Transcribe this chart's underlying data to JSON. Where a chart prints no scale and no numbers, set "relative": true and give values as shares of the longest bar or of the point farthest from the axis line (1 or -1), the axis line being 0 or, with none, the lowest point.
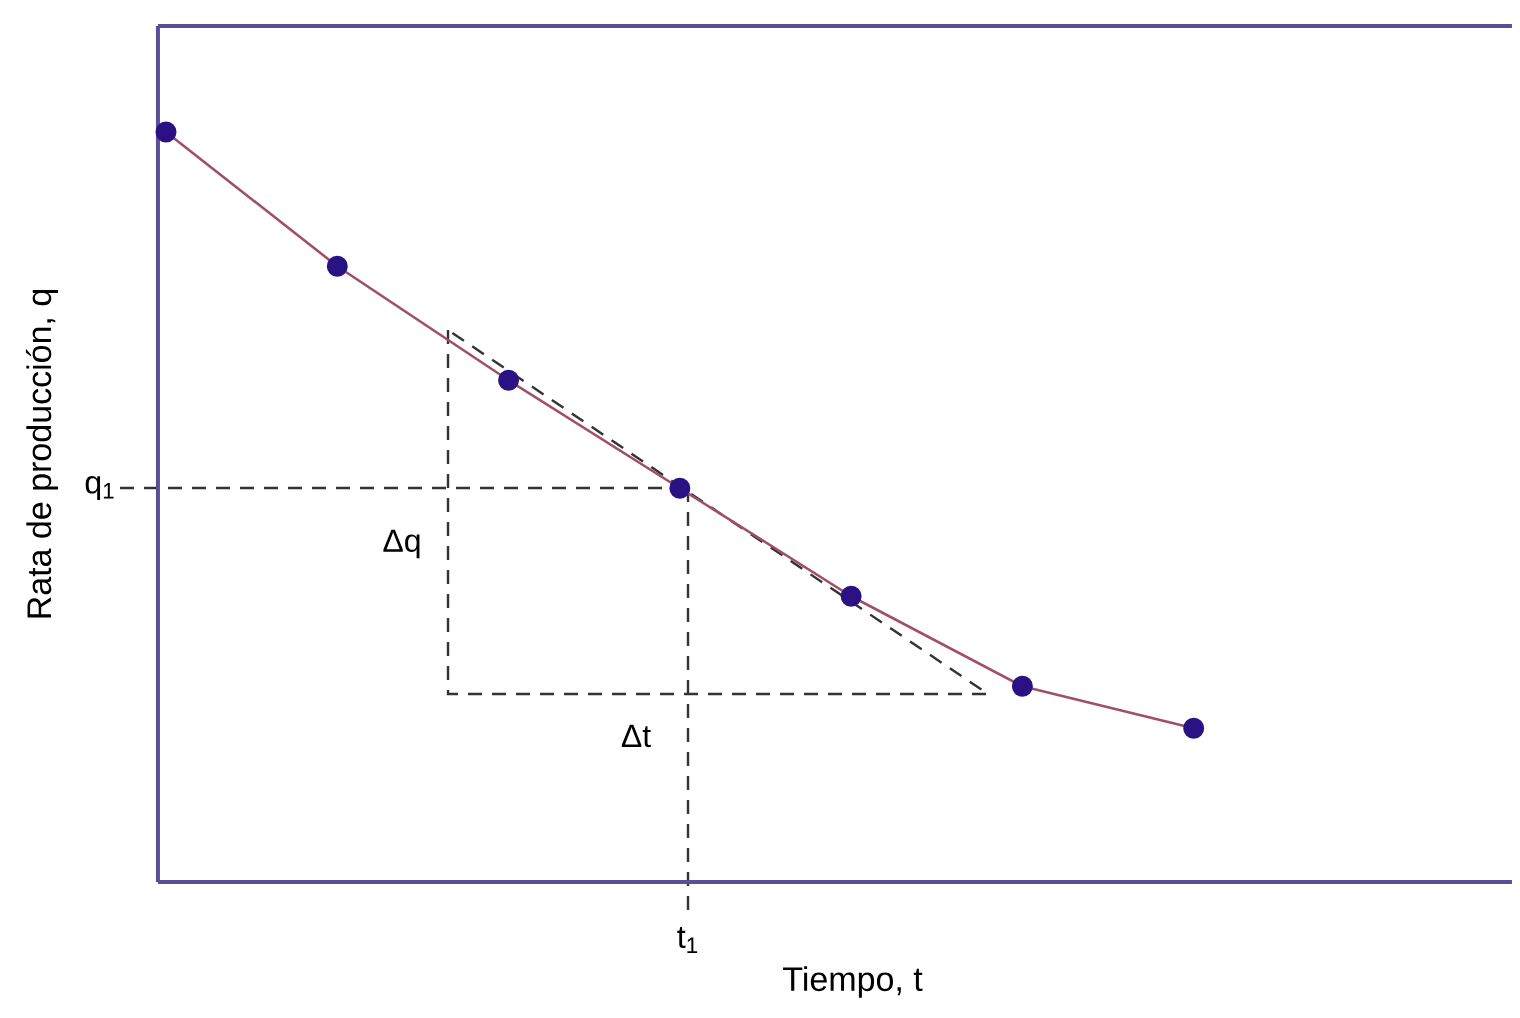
{
  "chart_data": {
    "type": "line",
    "relative": true,
    "xlabel": "Tiempo, t",
    "ylabel": "Rata de producción, q",
    "categories": [
      null,
      null,
      null,
      null,
      null,
      null,
      null
    ],
    "series": [
      {
        "color": "#a04f6a",
        "values": [
          1,
          0.821,
          0.669,
          0.525,
          0.381,
          0.261,
          0.205
        ],
        "marker": "circle",
        "line_style": "solid"
      }
    ],
    "annotations": [
      "q$_{1}$",
      "t$_{1}$",
      "Δq",
      "Δt"
    ]
  }
}
